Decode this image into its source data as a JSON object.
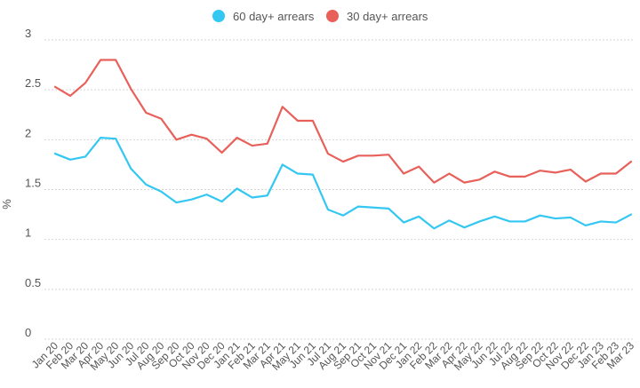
{
  "chart_data": {
    "type": "line",
    "title": "",
    "xlabel": "",
    "ylabel": "%",
    "ylim": [
      0,
      3
    ],
    "yticks": [
      0,
      0.5,
      1,
      1.5,
      2,
      2.5,
      3
    ],
    "ytick_labels": [
      "0",
      "0.5",
      "1",
      "1.5",
      "2",
      "2.5",
      "3"
    ],
    "grid": "horizontal",
    "legend_position": "top-center",
    "categories": [
      "Jan 20",
      "Feb 20",
      "Mar 20",
      "Apr 20",
      "May 20",
      "Jun 20",
      "Jul 20",
      "Aug 20",
      "Sep 20",
      "Oct 20",
      "Nov 20",
      "Dec 20",
      "Jan 21",
      "Feb 21",
      "Mar 21",
      "Apr 21",
      "May 21",
      "Jun 21",
      "Jul 21",
      "Aug 21",
      "Sep 21",
      "Oct 21",
      "Nov 21",
      "Dec 21",
      "Jan 22",
      "Feb 22",
      "Mar 22",
      "Apr 22",
      "May 22",
      "Jun 22",
      "Jul 22",
      "Aug 22",
      "Sep 22",
      "Oct 22",
      "Nov 22",
      "Dec 22",
      "Jan 23",
      "Feb 23",
      "Mar 23"
    ],
    "series": [
      {
        "name": "60 day+ arrears",
        "color": "#33c7f2",
        "values": [
          1.86,
          1.8,
          1.83,
          2.02,
          2.01,
          1.71,
          1.55,
          1.48,
          1.37,
          1.4,
          1.45,
          1.38,
          1.51,
          1.42,
          1.44,
          1.75,
          1.66,
          1.65,
          1.3,
          1.24,
          1.33,
          1.32,
          1.31,
          1.17,
          1.23,
          1.11,
          1.19,
          1.12,
          1.18,
          1.23,
          1.18,
          1.18,
          1.24,
          1.21,
          1.22,
          1.14,
          1.18,
          1.17,
          1.25
        ]
      },
      {
        "name": "30 day+ arrears",
        "color": "#e8605a",
        "values": [
          2.53,
          2.44,
          2.57,
          2.8,
          2.8,
          2.51,
          2.27,
          2.21,
          2.0,
          2.05,
          2.01,
          1.87,
          2.02,
          1.94,
          1.96,
          2.33,
          2.19,
          2.19,
          1.86,
          1.78,
          1.84,
          1.84,
          1.85,
          1.66,
          1.73,
          1.57,
          1.66,
          1.57,
          1.6,
          1.68,
          1.63,
          1.63,
          1.69,
          1.67,
          1.7,
          1.58,
          1.66,
          1.66,
          1.78
        ]
      }
    ]
  }
}
